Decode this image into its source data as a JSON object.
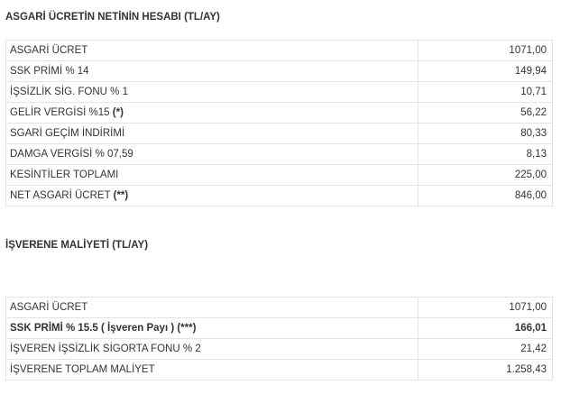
{
  "section1": {
    "title": "ASGARİ ÜCRETİN NETİNİN HESABI (TL/AY)",
    "rows": [
      {
        "label": "ASGARİ ÜCRET",
        "suffix": "",
        "value": "1071,00"
      },
      {
        "label": "SSK PRİMİ % 14",
        "suffix": "",
        "value": "149,94"
      },
      {
        "label": "İŞSİZLİK SİG. FONU % 1",
        "suffix": "",
        "value": "10,71"
      },
      {
        "label": "GELİR VERGİSİ %15 ",
        "suffix": "(*)",
        "value": "56,22"
      },
      {
        "label": "SGARİ GEÇİM İNDİRİMİ",
        "suffix": "",
        "value": "80,33"
      },
      {
        "label": "DAMGA VERGİSİ % 07,59",
        "suffix": "",
        "value": "8,13"
      },
      {
        "label": "KESİNTİLER TOPLAMI",
        "suffix": "",
        "value": "225,00"
      },
      {
        "label": "NET ASGARİ ÜCRET ",
        "suffix": "(**)",
        "value": "846,00"
      }
    ]
  },
  "section2": {
    "title": "İŞVERENE MALİYETİ (TL/AY)",
    "rows": [
      {
        "label": "ASGARİ ÜCRET",
        "value": "1071,00"
      },
      {
        "label": "SSK PRİMİ % 15.5 ( İşveren Payı ) (***)",
        "value": "166,01"
      },
      {
        "label": "İŞVEREN İŞSİZLİK SİGORTA FONU % 2",
        "value": "21,42"
      },
      {
        "label": "İŞVERENE TOPLAM MALİYET",
        "value": "1.258,43"
      }
    ]
  }
}
